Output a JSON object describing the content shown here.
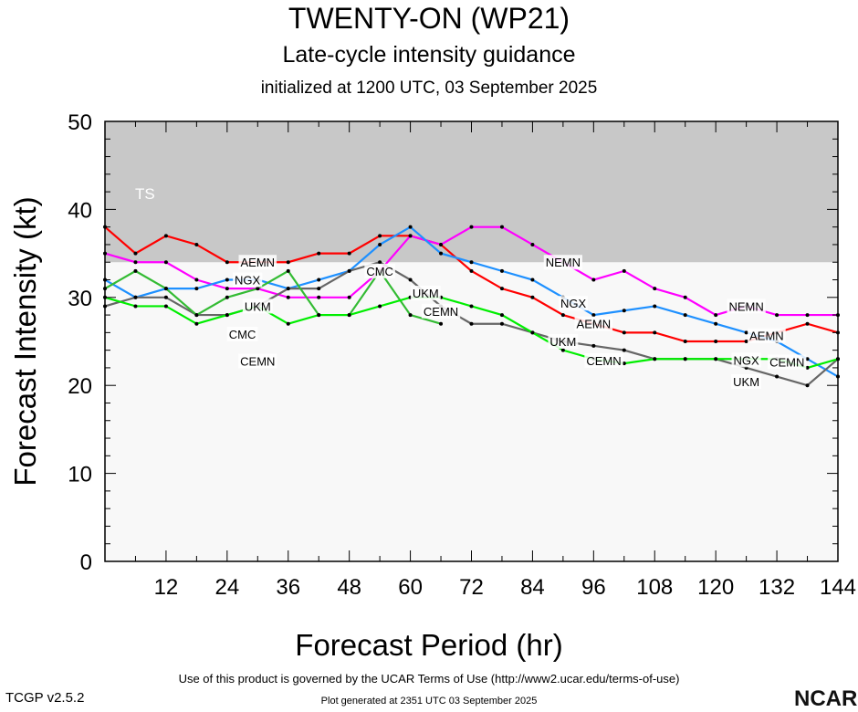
{
  "chart_data": {
    "type": "line",
    "title": "TWENTY-ON (WP21)",
    "subtitle": "Late-cycle intensity guidance",
    "init": "initialized at 1200 UTC, 03 September 2025",
    "xlabel": "Forecast Period (hr)",
    "ylabel": "Forecast Intensity (kt)",
    "xlim": [
      0,
      144
    ],
    "ylim": [
      0,
      50
    ],
    "xticks": [
      12,
      24,
      36,
      48,
      60,
      72,
      84,
      96,
      108,
      120,
      132,
      144
    ],
    "yticks": [
      0,
      10,
      20,
      30,
      40,
      50
    ],
    "band": {
      "label": "TS",
      "from": 34,
      "to": 50,
      "color": "#c8c8c8"
    },
    "x": [
      0,
      6,
      12,
      18,
      24,
      30,
      36,
      42,
      48,
      54,
      60,
      66,
      72,
      78,
      84,
      90,
      96,
      102,
      108,
      114,
      120,
      126,
      132,
      138,
      144
    ],
    "series": [
      {
        "name": "AEMN",
        "color": "#ff0000",
        "label_at": [
          30,
          96,
          130
        ],
        "values": [
          38,
          35,
          37,
          36,
          34,
          34,
          34,
          35,
          35,
          37,
          37,
          36,
          33,
          31,
          30,
          28,
          27,
          26,
          26,
          25,
          25,
          25,
          26,
          27,
          26
        ]
      },
      {
        "name": "NEMN",
        "color": "#ff00ff",
        "label_at": [
          90,
          126
        ],
        "values": [
          35,
          34,
          34,
          32,
          31,
          31,
          30,
          30,
          30,
          33,
          37,
          36,
          38,
          38,
          36,
          34,
          32,
          33,
          31,
          30,
          28,
          29,
          28,
          28,
          28
        ]
      },
      {
        "name": "NGX",
        "color": "#1e90ff",
        "label_at": [
          28,
          92,
          126
        ],
        "values": [
          32,
          30,
          31,
          31,
          32,
          32,
          31,
          32,
          33,
          36,
          38,
          35,
          34,
          33,
          32,
          30,
          28,
          28.5,
          29,
          28,
          27,
          26,
          25,
          23,
          21
        ]
      },
      {
        "name": "UKM",
        "color": "#666666",
        "label_at": [
          30,
          63,
          90,
          126
        ],
        "values": [
          29,
          30,
          30,
          28,
          28,
          29,
          31,
          31,
          33,
          34,
          32,
          29,
          27,
          27,
          26,
          25,
          24.5,
          24,
          23,
          23,
          23,
          22,
          21,
          20,
          23
        ]
      },
      {
        "name": "CMC",
        "color": "#33bb33",
        "label_at": [
          27,
          54
        ],
        "values": [
          31,
          33,
          31,
          28,
          30,
          31,
          33,
          28,
          28,
          33,
          28,
          27,
          null,
          null,
          null,
          null,
          null,
          null,
          null,
          null,
          null,
          null,
          null,
          null,
          null
        ]
      },
      {
        "name": "CEMN",
        "color": "#00ee00",
        "label_at": [
          30,
          66,
          98,
          134
        ],
        "values": [
          30,
          29,
          29,
          27,
          28,
          29,
          27,
          28,
          28,
          29,
          30,
          30,
          29,
          28,
          26,
          24,
          23,
          22.5,
          23,
          23,
          23,
          23,
          23,
          22,
          23
        ]
      }
    ]
  },
  "footer": {
    "terms": "Use of this product is governed by the UCAR Terms of Use (http://www2.ucar.edu/terms-of-use)",
    "version": "TCGP v2.5.2",
    "generated": "Plot generated at 2351 UTC   03 September 2025",
    "logo": "NCAR"
  }
}
